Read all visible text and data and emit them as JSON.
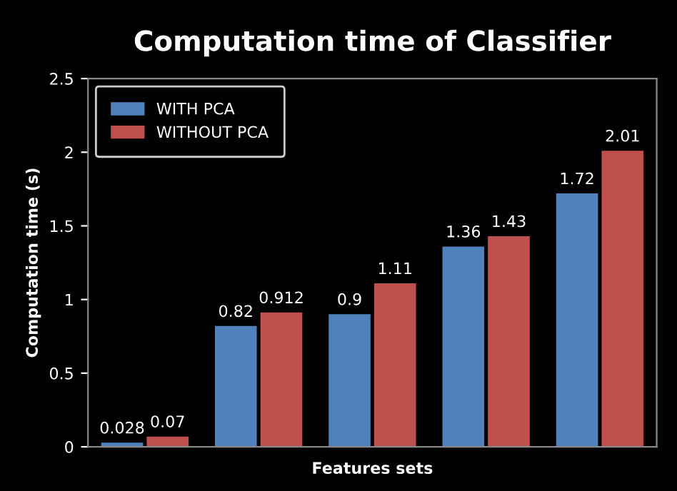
{
  "chart_data": {
    "type": "bar",
    "title": "Computation time of Classifier",
    "xlabel": "Features sets",
    "ylabel": "Computation time (s)",
    "categories": [
      null,
      null,
      null,
      null,
      null
    ],
    "series": [
      {
        "name": "WITH PCA",
        "color": "#4f81bd",
        "values": [
          0.028,
          0.82,
          0.9,
          1.36,
          1.72
        ]
      },
      {
        "name": "WITHOUT PCA",
        "color": "#c0504d",
        "values": [
          0.07,
          0.912,
          1.11,
          1.43,
          2.01
        ]
      }
    ],
    "ylim": [
      0,
      2.5
    ],
    "yticks": [
      0,
      0.5,
      1,
      1.5,
      2,
      2.5
    ],
    "grid": false,
    "legend": "top left",
    "data_labels": true
  }
}
